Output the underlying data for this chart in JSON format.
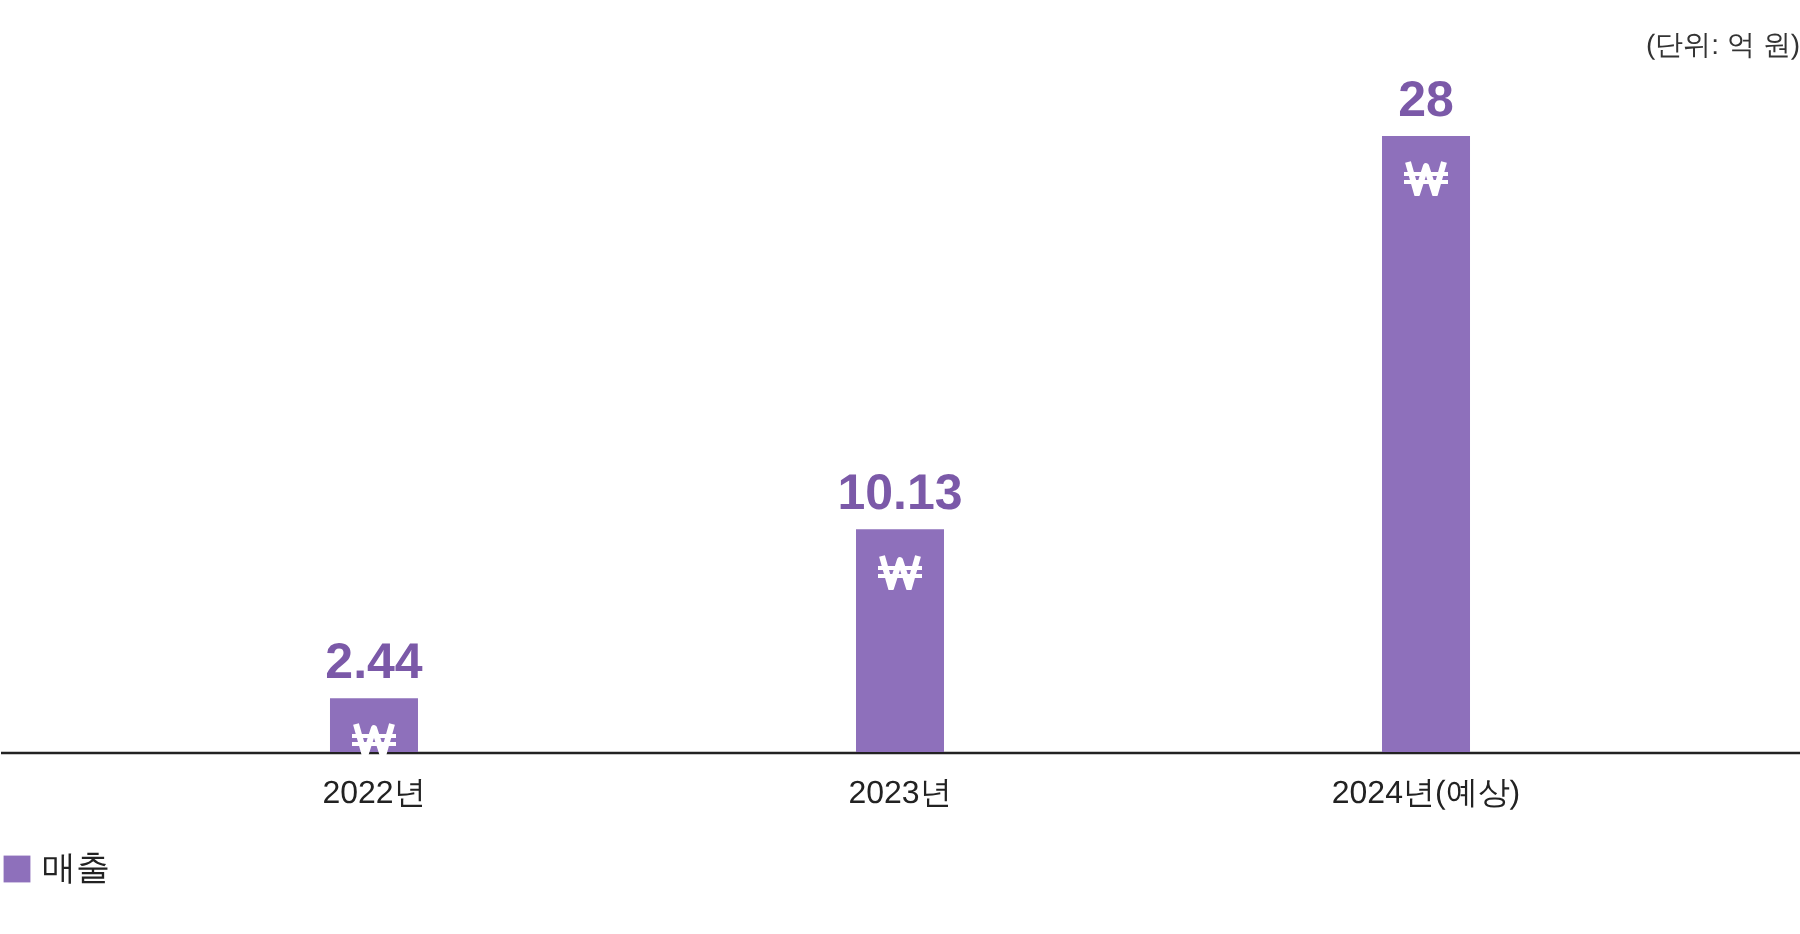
{
  "chart_data": {
    "type": "bar",
    "categories": [
      "2022년",
      "2023년",
      "2024년(예상)"
    ],
    "series": [
      {
        "name": "매출",
        "color": "#8e70bb",
        "values": [
          2.44,
          10.13,
          28
        ]
      }
    ],
    "data_labels": true,
    "legend": "bottom",
    "grid": false,
    "annotations": [
      "(단위: 억 원)"
    ]
  }
}
